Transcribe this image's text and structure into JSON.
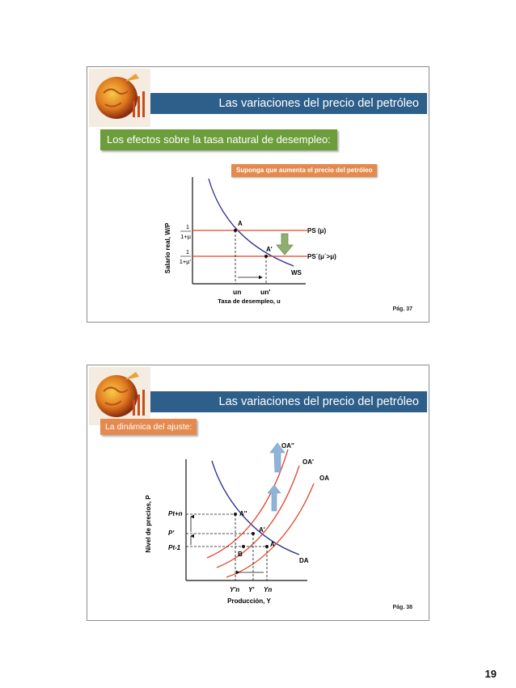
{
  "slide1": {
    "title": "Las variaciones del precio del petróleo",
    "subtitle": "Los efectos sobre la tasa natural de desempleo:",
    "note": "Suponga que aumenta el precio del petróleo",
    "y_axis_label": "Salario real, W/P",
    "x_axis_label": "Tasa de desempleo, u",
    "frac1_num": "1",
    "frac1_den": "1+μ",
    "frac2_num": "1",
    "frac2_den": "1+μ'",
    "point_A": "A",
    "point_A2": "A'",
    "ps_label": "PS (μ)",
    "ps2_label": "PS´(μ´>μ)",
    "ws_label": "WS",
    "un_label": "un",
    "un2_label": "un'",
    "page": "Pág. 37",
    "colors": {
      "header": "#2e5f8a",
      "subtitle": "#6d9d3b",
      "note": "#e48a4e",
      "ws_curve": "#2a2f8f",
      "ps_lines": "#e0452a",
      "arrow": "#8fae72"
    }
  },
  "slide2": {
    "title": "Las variaciones del precio del petróleo",
    "subtitle": "La dinámica del ajuste:",
    "y_axis_label": "Nivel de precios, P",
    "x_axis_label": "Producción, Y",
    "oa2_label": "OA''",
    "oa1_label": "OA'",
    "oa_label": "OA",
    "da_label": "DA",
    "p_tn": "Pt+n",
    "p_prime": "P'",
    "p_t1": "Pt-1",
    "point_A2": "A''",
    "point_A1": "A'",
    "point_A": "A",
    "point_B": "B",
    "yn2": "Y'n",
    "y_prime": "Y'",
    "yn": "Yn",
    "page": "Pág. 38",
    "colors": {
      "header": "#2e5f8a",
      "subtitle": "#e48a4e",
      "oa_curves": "#e0452a",
      "da_curve": "#2a2f8f",
      "arrows": "#8fb4d8"
    }
  },
  "page_number": "19"
}
